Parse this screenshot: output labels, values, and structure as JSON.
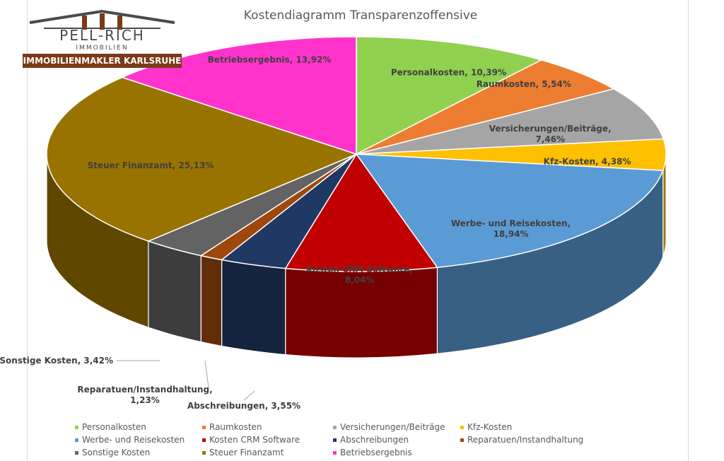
{
  "logo": {
    "name": "PELL-RICH",
    "sub": "IMMOBILIEN",
    "band": "IMMOBILIENMAKLER KARLSRUHE"
  },
  "chart_data": {
    "type": "pie",
    "title": "Kostendiagramm  Transparenzoffensive",
    "legend_position": "bottom",
    "slices": [
      {
        "label": "Personalkosten",
        "value": 10.39,
        "data_label": "Personalkosten, 10,39%",
        "color": "#92d050"
      },
      {
        "label": "Raumkosten",
        "value": 5.54,
        "data_label": "Raumkosten, 5,54%",
        "color": "#ed7d31"
      },
      {
        "label": "Versicherungen/Beiträge",
        "value": 7.46,
        "data_label": "Versicherungen/Beiträge, 7,46%",
        "color": "#a5a5a5"
      },
      {
        "label": "Kfz-Kosten",
        "value": 4.38,
        "data_label": "Kfz-Kosten, 4,38%",
        "color": "#ffc000"
      },
      {
        "label": "Werbe- und Reisekosten",
        "value": 18.94,
        "data_label": "Werbe- und Reisekosten, 18,94%",
        "color": "#5b9bd5"
      },
      {
        "label": "Kosten CRM Software",
        "value": 8.04,
        "data_label": "Kosten CRM Software, 8,04%",
        "color": "#c00000"
      },
      {
        "label": "Abschreibungen",
        "value": 3.55,
        "data_label": "Abschreibungen, 3,55%",
        "color": "#203864"
      },
      {
        "label": "Reparatuen/Instandhaltung",
        "value": 1.23,
        "data_label": "Reparatuen/Instandhaltung, 1,23%",
        "color": "#9e480e"
      },
      {
        "label": "Sonstige Kosten",
        "value": 3.42,
        "data_label": "Sonstige Kosten, 3,42%",
        "color": "#636363"
      },
      {
        "label": "Steuer Finanzamt",
        "value": 25.13,
        "data_label": "Steuer Finanzamt, 25,13%",
        "color": "#997300"
      },
      {
        "label": "Betriebsergebnis",
        "value": 13.92,
        "data_label": "Betriebsergebnis, 13,92%",
        "color": "#ff33cc"
      }
    ]
  }
}
